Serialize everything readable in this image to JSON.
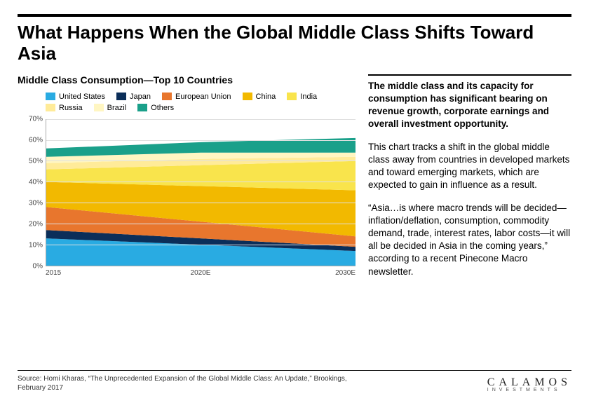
{
  "title": "What Happens When the Global Middle Class Shifts Toward Asia",
  "chart": {
    "title": "Middle Class Consumption—Top 10 Countries",
    "type": "stacked-area",
    "legend_order": [
      "us",
      "japan",
      "eu",
      "china",
      "india",
      "russia",
      "brazil",
      "others"
    ],
    "series": {
      "us": {
        "label": "United States",
        "color": "#29abe2"
      },
      "japan": {
        "label": "Japan",
        "color": "#0b2e59"
      },
      "eu": {
        "label": "European Union",
        "color": "#e8762d"
      },
      "china": {
        "label": "China",
        "color": "#f2b900"
      },
      "india": {
        "label": "India",
        "color": "#f9e44c"
      },
      "russia": {
        "label": "Russia",
        "color": "#ffeb99"
      },
      "brazil": {
        "label": "Brazil",
        "color": "#fff6c2"
      },
      "others": {
        "label": "Others",
        "color": "#1aa08a"
      }
    },
    "x_labels": [
      "2015",
      "2020E",
      "2030E"
    ],
    "x_positions_pct": [
      0,
      50,
      100
    ],
    "stacks": [
      {
        "us": 13,
        "japan": 4,
        "eu": 11,
        "china": 12,
        "india": 6,
        "russia": 3,
        "brazil": 3,
        "others": 4
      },
      {
        "us": 10,
        "japan": 3,
        "eu": 8,
        "china": 17,
        "india": 10,
        "russia": 3,
        "brazil": 3,
        "others": 5
      },
      {
        "us": 7,
        "japan": 2,
        "eu": 5,
        "china": 22,
        "india": 14,
        "russia": 2,
        "brazil": 2,
        "others": 7
      }
    ],
    "ylim": [
      0,
      70
    ],
    "ytick_step": 10,
    "ytick_suffix": "%",
    "grid_color": "#e0e0e0",
    "axis_color": "#aaaaaa",
    "background_color": "#ffffff",
    "label_fontsize": 10,
    "legend_fontsize": 11,
    "title_fontsize": 14
  },
  "commentary": {
    "p1": "The middle class and its capacity for consumption has significant bearing on revenue growth, corporate earnings and overall investment opportunity.",
    "p2": "This chart tracks a shift in the global middle class away from countries in developed markets and toward emerging markets, which are expected to gain in influence as a result.",
    "p3": "“Asia…is where macro trends will be decided—inflation/deflation, consumption, commodity demand, trade, interest rates, labor costs—it will all be decided in Asia in the coming years,” according to a recent Pinecone Macro newsletter."
  },
  "source": "Source: Homi Kharas, “The Unprecedented Expansion of the Global Middle Class: An Update,” Brookings, February 2017",
  "brand": {
    "name": "CALAMOS",
    "sub": "INVESTMENTS"
  }
}
